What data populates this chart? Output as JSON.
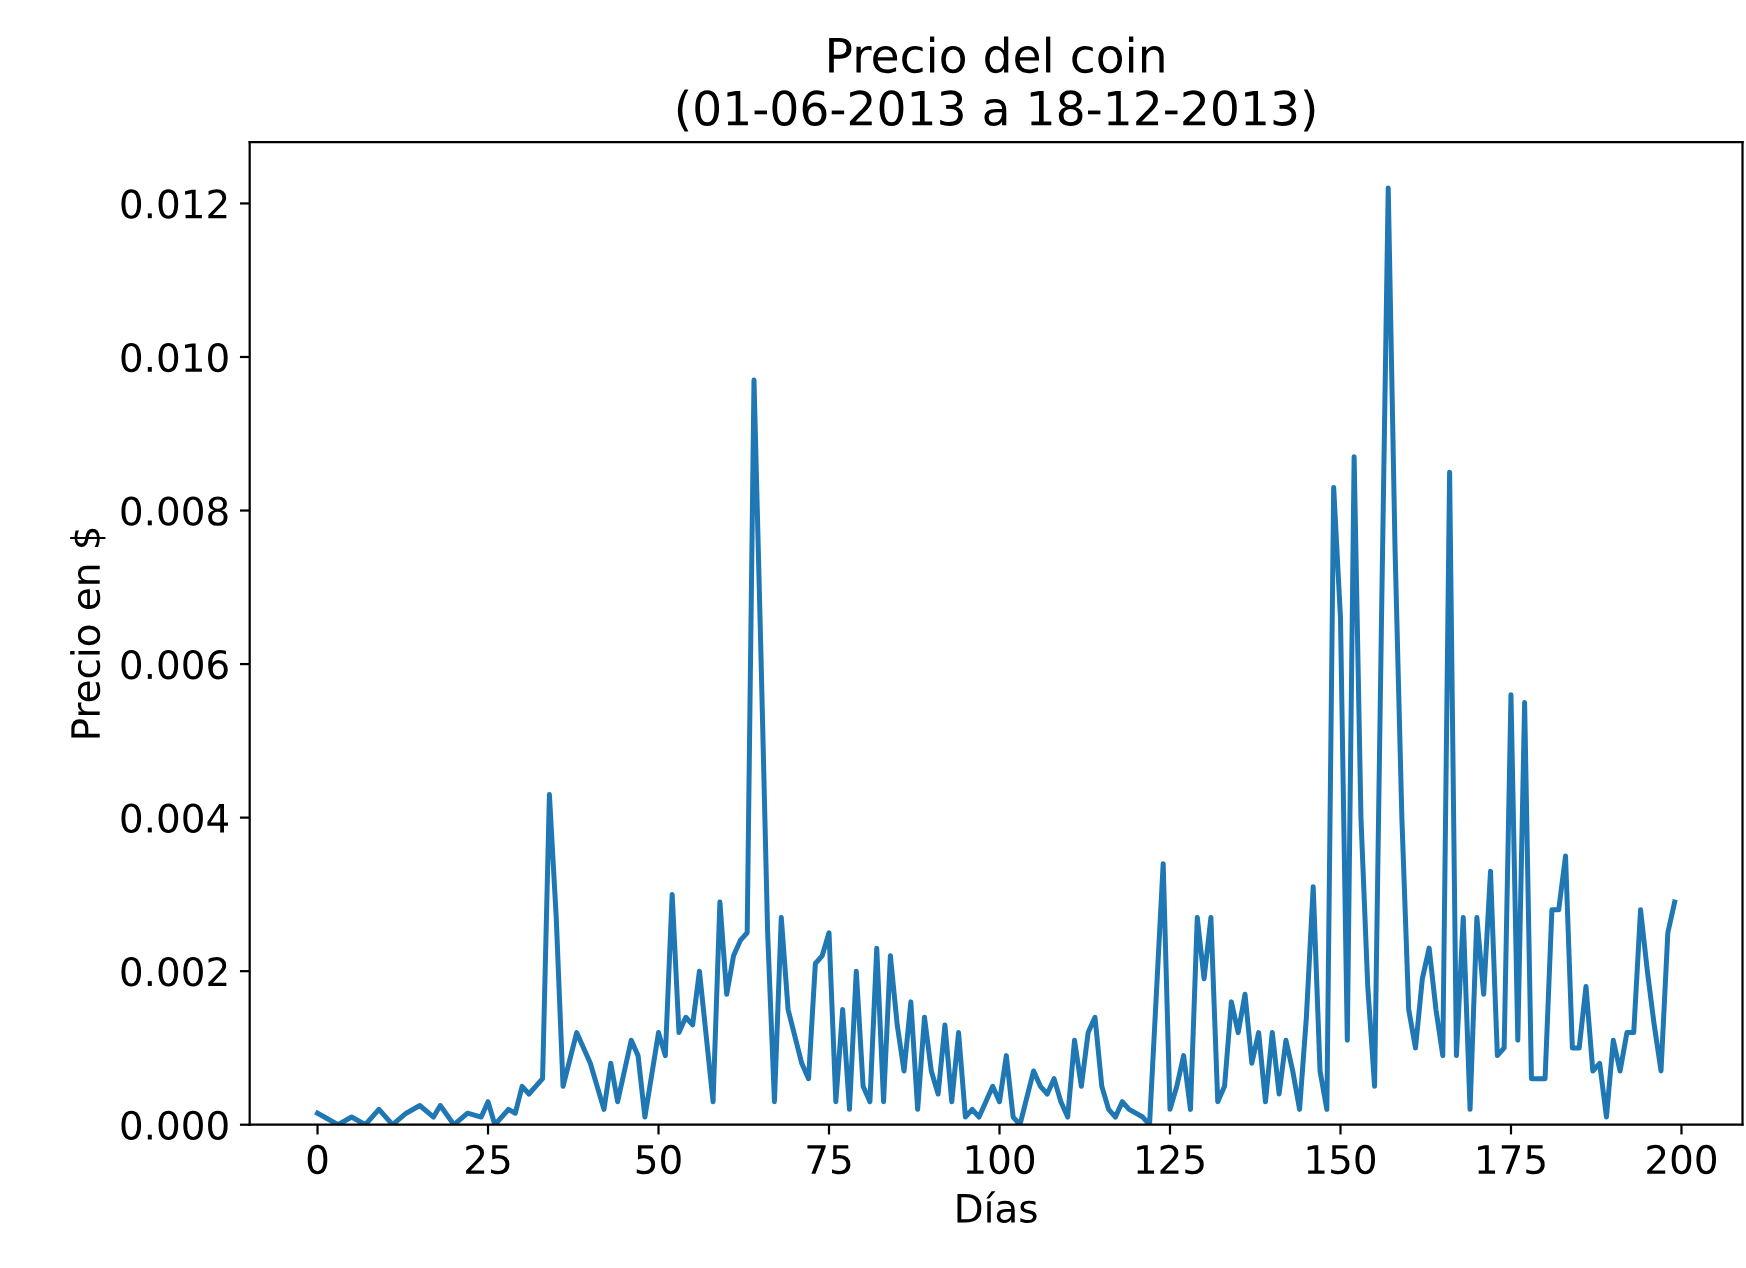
{
  "chart_data": {
    "type": "line",
    "title": "Precio del coin\n(01-06-2013 a 18-12-2013)",
    "xlabel": "Días",
    "ylabel": "Precio en $",
    "xlim": [
      -9.95,
      208.95
    ],
    "xticks": [
      0,
      25,
      50,
      75,
      100,
      125,
      150,
      175,
      200
    ],
    "ylim": [
      0,
      0.0128
    ],
    "yticks": [
      {
        "value": 0,
        "label": "0.000"
      },
      {
        "value": 0.002,
        "label": "0.002"
      },
      {
        "value": 0.004,
        "label": "0.004"
      },
      {
        "value": 0.006,
        "label": "0.006"
      },
      {
        "value": 0.008,
        "label": "0.008"
      },
      {
        "value": 0.01,
        "label": "0.010"
      },
      {
        "value": 0.012,
        "label": "0.012"
      }
    ],
    "grid": false,
    "series": [
      {
        "color": "#1f77b4",
        "x": [
          0,
          1,
          3,
          5,
          7,
          9,
          11,
          13,
          15,
          17,
          18,
          20,
          22,
          24,
          25,
          26,
          28,
          29,
          30,
          31,
          33,
          34,
          35,
          36,
          38,
          40,
          42,
          43,
          44,
          46,
          47,
          48,
          50,
          51,
          52,
          53,
          54,
          55,
          56,
          58,
          59,
          60,
          61,
          62,
          63,
          64,
          65,
          66,
          67,
          68,
          69,
          71,
          72,
          73,
          74,
          75,
          76,
          77,
          78,
          79,
          80,
          81,
          82,
          83,
          84,
          85,
          86,
          87,
          88,
          89,
          90,
          91,
          92,
          93,
          94,
          95,
          96,
          97,
          98,
          99,
          100,
          101,
          102,
          103,
          105,
          106,
          107,
          108,
          109,
          110,
          111,
          112,
          113,
          114,
          115,
          116,
          117,
          118,
          119,
          121,
          122,
          124,
          125,
          126,
          127,
          128,
          129,
          130,
          131,
          132,
          133,
          134,
          135,
          136,
          137,
          138,
          139,
          140,
          141,
          142,
          143,
          144,
          145,
          146,
          147,
          148,
          149,
          150,
          151,
          152,
          153,
          154,
          155,
          156,
          157,
          158,
          159,
          160,
          161,
          162,
          163,
          164,
          165,
          166,
          167,
          168,
          169,
          170,
          171,
          172,
          173,
          174,
          175,
          176,
          177,
          178,
          179,
          180,
          181,
          182,
          183,
          184,
          185,
          186,
          187,
          188,
          189,
          190,
          191,
          192,
          193,
          194,
          195,
          196,
          197,
          198,
          199
        ],
        "values": [
          0.00015,
          0.0001,
          0.0,
          0.0001,
          0.0,
          0.0002,
          0.0,
          0.00015,
          0.00025,
          0.0001,
          0.00025,
          0.0,
          0.00015,
          0.0001,
          0.0003,
          0.0,
          0.0002,
          0.00015,
          0.0005,
          0.0004,
          0.0006,
          0.0043,
          0.0027,
          0.0005,
          0.0012,
          0.0008,
          0.0002,
          0.0008,
          0.0003,
          0.0011,
          0.0009,
          0.0001,
          0.0012,
          0.0009,
          0.003,
          0.0012,
          0.0014,
          0.0013,
          0.002,
          0.0003,
          0.0029,
          0.0017,
          0.0022,
          0.0024,
          0.0025,
          0.0097,
          0.0062,
          0.0025,
          0.0003,
          0.0027,
          0.0015,
          0.0008,
          0.0006,
          0.0021,
          0.0022,
          0.0025,
          0.0003,
          0.0015,
          0.0002,
          0.002,
          0.0005,
          0.0003,
          0.0023,
          0.0003,
          0.0022,
          0.0013,
          0.0007,
          0.0016,
          0.0002,
          0.0014,
          0.0007,
          0.0004,
          0.0013,
          0.0003,
          0.0012,
          0.0001,
          0.0002,
          0.0001,
          0.0003,
          0.0005,
          0.0003,
          0.0009,
          0.0001,
          0.0,
          0.0007,
          0.0005,
          0.0004,
          0.0006,
          0.0003,
          0.0001,
          0.0011,
          0.0005,
          0.0012,
          0.0014,
          0.0005,
          0.0002,
          0.0001,
          0.0003,
          0.0002,
          0.0001,
          0.0,
          0.0034,
          0.0002,
          0.0005,
          0.0009,
          0.0002,
          0.0027,
          0.0019,
          0.0027,
          0.0003,
          0.0005,
          0.0016,
          0.0012,
          0.0017,
          0.0008,
          0.0012,
          0.0003,
          0.0012,
          0.0004,
          0.0011,
          0.0007,
          0.0002,
          0.0014,
          0.0031,
          0.0007,
          0.0002,
          0.0083,
          0.0066,
          0.0011,
          0.0087,
          0.004,
          0.0018,
          0.0005,
          0.0065,
          0.0122,
          0.0075,
          0.004,
          0.0015,
          0.001,
          0.0019,
          0.0023,
          0.0015,
          0.0009,
          0.0085,
          0.0009,
          0.0027,
          0.0002,
          0.0027,
          0.0017,
          0.0033,
          0.0009,
          0.001,
          0.0056,
          0.0011,
          0.0055,
          0.0006,
          0.0006,
          0.0006,
          0.0028,
          0.0028,
          0.0035,
          0.001,
          0.001,
          0.0018,
          0.0007,
          0.0008,
          0.0001,
          0.0011,
          0.0007,
          0.0012,
          0.0012,
          0.0028,
          0.002,
          0.0013,
          0.0007,
          0.0025,
          0.0029
        ]
      }
    ]
  }
}
